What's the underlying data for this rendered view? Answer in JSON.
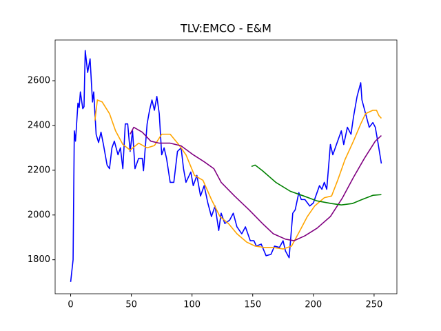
{
  "chart_data": {
    "type": "line",
    "title": "TLV:EMCO - E&M",
    "xlim": [
      -12.8,
      268.8
    ],
    "ylim": [
      1648,
      2782
    ],
    "xticks": [
      0,
      50,
      100,
      150,
      200,
      250
    ],
    "yticks": [
      1800,
      2000,
      2200,
      2400,
      2600
    ],
    "grid": false,
    "series": [
      {
        "color": "#0000ff",
        "x": [
          0,
          2,
          3,
          4,
          6,
          7,
          8,
          10,
          11,
          12,
          14,
          16,
          18,
          19,
          21,
          23,
          25,
          27,
          30,
          32,
          34,
          36,
          39,
          41,
          43,
          45,
          47,
          49,
          51,
          53,
          56,
          59,
          60,
          63,
          65,
          67,
          69,
          71,
          73,
          75,
          77,
          79,
          82,
          85,
          88,
          91,
          93,
          95,
          99,
          101,
          104,
          107,
          110,
          113,
          116,
          119,
          122,
          124,
          127,
          131,
          134,
          137,
          141,
          144,
          148,
          151,
          153,
          157,
          161,
          165,
          168,
          172,
          175,
          177,
          180,
          183,
          185,
          188,
          190,
          193,
          197,
          200,
          202,
          205,
          207,
          209,
          211,
          214,
          216,
          219,
          223,
          225,
          228,
          231,
          233,
          236,
          239,
          240,
          243,
          246,
          249,
          251,
          253,
          256
        ],
        "values": [
          1701,
          1800,
          2376,
          2330,
          2500,
          2480,
          2550,
          2475,
          2484,
          2735,
          2637,
          2698,
          2505,
          2550,
          2360,
          2324,
          2370,
          2315,
          2223,
          2207,
          2300,
          2330,
          2269,
          2300,
          2207,
          2407,
          2407,
          2284,
          2376,
          2207,
          2253,
          2253,
          2198,
          2407,
          2468,
          2514,
          2468,
          2530,
          2453,
          2269,
          2300,
          2253,
          2146,
          2146,
          2284,
          2300,
          2207,
          2146,
          2192,
          2131,
          2177,
          2085,
          2131,
          2054,
          1993,
          2040,
          1931,
          2008,
          1962,
          1977,
          2008,
          1947,
          1916,
          1947,
          1885,
          1885,
          1861,
          1870,
          1818,
          1824,
          1861,
          1855,
          1885,
          1839,
          1809,
          2008,
          2023,
          2100,
          2069,
          2069,
          2040,
          2054,
          2085,
          2131,
          2115,
          2146,
          2115,
          2315,
          2269,
          2315,
          2376,
          2315,
          2392,
          2361,
          2437,
          2530,
          2591,
          2514,
          2453,
          2392,
          2413,
          2392,
          2330,
          2230
        ]
      },
      {
        "color": "#ffa500",
        "x": [
          20,
          22,
          26,
          32,
          37,
          43,
          49,
          56,
          63,
          69,
          75,
          82,
          89,
          95,
          102,
          109,
          116,
          123,
          130,
          137,
          145,
          152,
          159,
          167,
          175,
          182,
          189,
          195,
          201,
          209,
          215,
          220,
          226,
          233,
          239,
          243,
          249,
          252,
          254,
          256
        ],
        "values": [
          2422,
          2514,
          2505,
          2453,
          2376,
          2315,
          2290,
          2321,
          2300,
          2310,
          2361,
          2361,
          2315,
          2269,
          2177,
          2155,
          2069,
          1993,
          1962,
          1916,
          1879,
          1861,
          1855,
          1855,
          1848,
          1861,
          1931,
          1993,
          2040,
          2077,
          2085,
          2155,
          2247,
          2330,
          2407,
          2453,
          2468,
          2468,
          2444,
          2432
        ]
      },
      {
        "color": "#800080",
        "x": [
          49,
          52,
          59,
          66,
          73,
          82,
          91,
          101,
          110,
          118,
          124,
          135,
          147,
          158,
          167,
          177,
          184,
          193,
          203,
          214,
          224,
          233,
          242,
          251,
          256
        ],
        "values": [
          2361,
          2392,
          2370,
          2330,
          2321,
          2321,
          2309,
          2269,
          2238,
          2207,
          2146,
          2085,
          2023,
          1962,
          1916,
          1892,
          1885,
          1907,
          1941,
          1993,
          2077,
          2168,
          2253,
          2330,
          2355
        ]
      },
      {
        "color": "#008000",
        "x": [
          149,
          152,
          158,
          169,
          181,
          192,
          203,
          215,
          223,
          232,
          240,
          249,
          256
        ],
        "values": [
          2217,
          2223,
          2198,
          2146,
          2106,
          2085,
          2063,
          2051,
          2045,
          2051,
          2069,
          2088,
          2091
        ]
      }
    ]
  }
}
